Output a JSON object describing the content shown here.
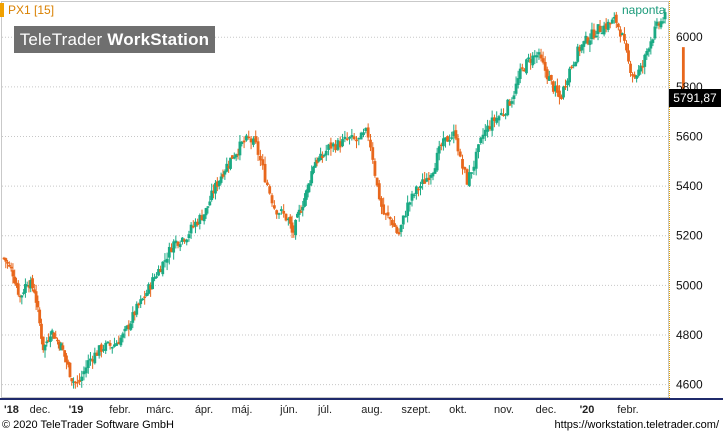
{
  "app": {
    "watermark_light": "TeleTrader ",
    "watermark_bold": "WorkStation",
    "series_label": "PX1 [15]",
    "period_label": "naponta",
    "last_value_label": "5791,87",
    "footer_copyright": "© 2020 TeleTrader Software GmbH",
    "footer_url": "https://workstation.teletrader.com/"
  },
  "colors": {
    "up": "#1aaa84",
    "down": "#e8671c",
    "grid": "#c7c7c7",
    "axis_accent": "#1f2a6b",
    "label_accent": "#d98000"
  },
  "chart_data": {
    "type": "candlestick",
    "title": "",
    "xlabel": "",
    "ylabel": "",
    "ylim": [
      4550,
      6150
    ],
    "y_ticks": [
      4600,
      4800,
      5000,
      5200,
      5400,
      5600,
      5800,
      6000
    ],
    "y_tick_labels": [
      "4600",
      "4800",
      "5000",
      "5200",
      "5400",
      "5600",
      "5800",
      "6000"
    ],
    "x_ticks": [
      {
        "label": "'18",
        "bold": true,
        "month_index": 0
      },
      {
        "label": "dec.",
        "bold": false,
        "month_index": 1
      },
      {
        "label": "'19",
        "bold": true,
        "month_index": 2
      },
      {
        "label": "febr.",
        "bold": false,
        "month_index": 3
      },
      {
        "label": "márc.",
        "bold": false,
        "month_index": 4
      },
      {
        "label": "ápr.",
        "bold": false,
        "month_index": 5
      },
      {
        "label": "máj.",
        "bold": false,
        "month_index": 6
      },
      {
        "label": "jún.",
        "bold": false,
        "month_index": 7
      },
      {
        "label": "júl.",
        "bold": false,
        "month_index": 8
      },
      {
        "label": "aug.",
        "bold": false,
        "month_index": 9
      },
      {
        "label": "szept.",
        "bold": false,
        "month_index": 10
      },
      {
        "label": "okt.",
        "bold": false,
        "month_index": 11
      },
      {
        "label": "nov.",
        "bold": false,
        "month_index": 12
      },
      {
        "label": "dec.",
        "bold": false,
        "month_index": 13
      },
      {
        "label": "'20",
        "bold": true,
        "month_index": 14
      },
      {
        "label": "febr.",
        "bold": false,
        "month_index": 15
      }
    ],
    "last_value": 5791.87,
    "close_path": [
      [
        0.0,
        5110
      ],
      [
        0.25,
        5050
      ],
      [
        0.45,
        4950
      ],
      [
        0.65,
        5020
      ],
      [
        0.85,
        4980
      ],
      [
        1.1,
        4740
      ],
      [
        1.3,
        4820
      ],
      [
        1.6,
        4750
      ],
      [
        1.9,
        4620
      ],
      [
        2.05,
        4600
      ],
      [
        2.3,
        4700
      ],
      [
        2.6,
        4750
      ],
      [
        2.85,
        4760
      ],
      [
        3.1,
        4800
      ],
      [
        3.4,
        4900
      ],
      [
        3.6,
        4950
      ],
      [
        3.85,
        5030
      ],
      [
        4.1,
        5100
      ],
      [
        4.3,
        5170
      ],
      [
        4.6,
        5200
      ],
      [
        4.8,
        5250
      ],
      [
        5.05,
        5300
      ],
      [
        5.25,
        5380
      ],
      [
        5.5,
        5460
      ],
      [
        5.75,
        5520
      ],
      [
        6.0,
        5570
      ],
      [
        6.15,
        5590
      ],
      [
        6.3,
        5560
      ],
      [
        6.5,
        5430
      ],
      [
        6.7,
        5310
      ],
      [
        6.85,
        5290
      ],
      [
        7.0,
        5260
      ],
      [
        7.1,
        5200
      ],
      [
        7.3,
        5300
      ],
      [
        7.5,
        5380
      ],
      [
        7.7,
        5500
      ],
      [
        7.9,
        5510
      ],
      [
        8.1,
        5560
      ],
      [
        8.3,
        5570
      ],
      [
        8.5,
        5590
      ],
      [
        8.7,
        5580
      ],
      [
        8.9,
        5620
      ],
      [
        9.0,
        5540
      ],
      [
        9.1,
        5410
      ],
      [
        9.25,
        5290
      ],
      [
        9.45,
        5260
      ],
      [
        9.6,
        5200
      ],
      [
        9.8,
        5320
      ],
      [
        10.0,
        5380
      ],
      [
        10.2,
        5420
      ],
      [
        10.4,
        5470
      ],
      [
        10.6,
        5560
      ],
      [
        10.8,
        5600
      ],
      [
        10.95,
        5610
      ],
      [
        11.05,
        5500
      ],
      [
        11.2,
        5420
      ],
      [
        11.35,
        5490
      ],
      [
        11.55,
        5610
      ],
      [
        11.75,
        5660
      ],
      [
        12.0,
        5700
      ],
      [
        12.2,
        5760
      ],
      [
        12.4,
        5860
      ],
      [
        12.6,
        5910
      ],
      [
        12.8,
        5930
      ],
      [
        13.0,
        5860
      ],
      [
        13.2,
        5790
      ],
      [
        13.35,
        5750
      ],
      [
        13.55,
        5860
      ],
      [
        13.8,
        5950
      ],
      [
        14.0,
        5990
      ],
      [
        14.25,
        6030
      ],
      [
        14.5,
        6050
      ],
      [
        14.7,
        6070
      ],
      [
        14.85,
        6010
      ],
      [
        15.0,
        5900
      ],
      [
        15.15,
        5840
      ],
      [
        15.35,
        5880
      ],
      [
        15.5,
        5970
      ],
      [
        15.7,
        6040
      ],
      [
        15.9,
        6080
      ],
      [
        16.05,
        6050
      ],
      [
        16.2,
        6020
      ],
      [
        16.35,
        5791.87
      ]
    ]
  }
}
